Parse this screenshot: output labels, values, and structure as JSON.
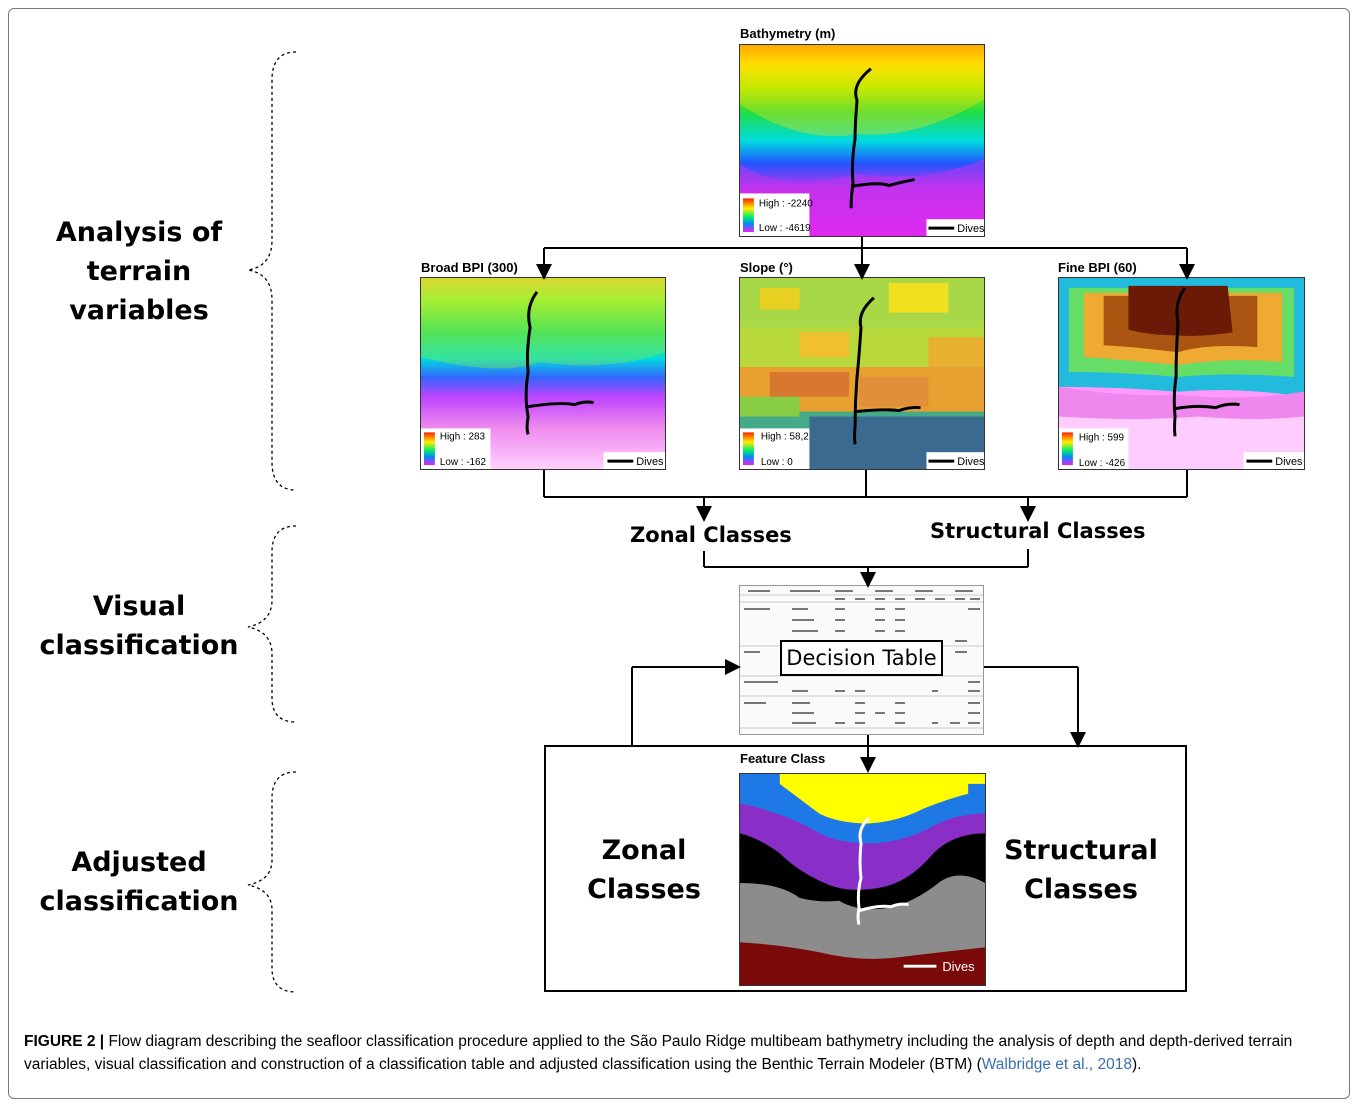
{
  "stages": {
    "analysis": [
      "Analysis of",
      "terrain",
      "variables"
    ],
    "visual": [
      "Visual",
      "classification"
    ],
    "adjusted": [
      "Adjusted",
      "classification"
    ]
  },
  "maps": {
    "bathymetry": {
      "title": "Bathymetry (m)",
      "high": "High : -2240",
      "low": "Low : -4619",
      "dives": "Dives"
    },
    "broad_bpi": {
      "title": "Broad BPI (300)",
      "high": "High : 283",
      "low": "Low : -162",
      "dives": "Dives"
    },
    "slope": {
      "title": "Slope (°)",
      "high": "High : 58,2",
      "low": "Low : 0",
      "dives": "Dives"
    },
    "fine_bpi": {
      "title": "Fine BPI (60)",
      "high": "High : 599",
      "low": "Low : -426",
      "dives": "Dives"
    },
    "feature_class": {
      "title": "Feature Class",
      "dives": "Dives"
    }
  },
  "classes": {
    "zonal": "Zonal Classes",
    "structural": "Structural Classes",
    "zonal_big": [
      "Zonal",
      "Classes"
    ],
    "structural_big": [
      "Structural",
      "Classes"
    ]
  },
  "decision_table": {
    "label": "Decision Table"
  },
  "caption": {
    "figure": "FIGURE 2 |",
    "text": " Flow diagram describing the seafloor classification procedure applied to the São Paulo Ridge multibeam bathymetry including the analysis of depth and depth-derived terrain variables, visual classification and construction of a classification table and adjusted classification using the Benthic Terrain Modeler (BTM) (",
    "citation": "Walbridge et al., 2018",
    "end": ")."
  },
  "colors": {
    "yellow": "#ffff00",
    "blue": "#1e78e6",
    "purple": "#8a2ec8",
    "black": "#000000",
    "gray": "#8c8c8c",
    "maroon": "#7a0a0a",
    "magenta": "#ee22ee"
  }
}
